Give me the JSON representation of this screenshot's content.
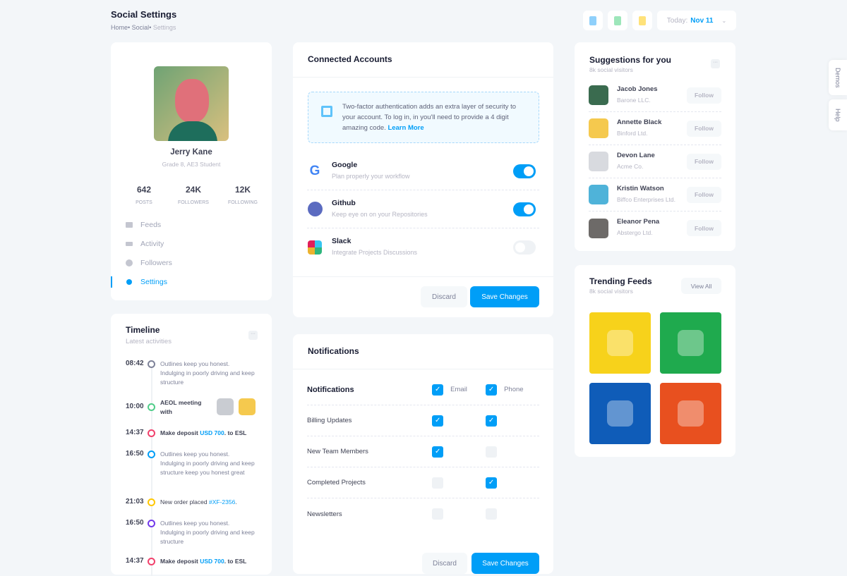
{
  "header": {
    "title": "Social Settings",
    "breadcrumb": [
      "Home",
      "Social",
      "Settings"
    ],
    "today_label": "Today:",
    "today_value": "Nov 11"
  },
  "profile": {
    "name": "Jerry Kane",
    "subtitle": "Grade 8, AE3 Student",
    "stats": [
      {
        "value": "642",
        "label": "POSTS"
      },
      {
        "value": "24K",
        "label": "FOLLOWERS"
      },
      {
        "value": "12K",
        "label": "FOLLOWING"
      }
    ],
    "nav": [
      {
        "label": "Feeds",
        "icon": "feeds-icon"
      },
      {
        "label": "Activity",
        "icon": "chart-icon"
      },
      {
        "label": "Followers",
        "icon": "user-icon"
      },
      {
        "label": "Settings",
        "icon": "gear-icon",
        "active": true
      }
    ]
  },
  "timeline": {
    "title": "Timeline",
    "subtitle": "Latest activities",
    "items": [
      {
        "time": "08:42",
        "text": "Outlines keep you honest. Indulging in poorly driving and keep structure",
        "color": "#7e8299"
      },
      {
        "time": "10:00",
        "text": "AEOL meeting with",
        "color": "#50cd89"
      },
      {
        "time": "14:37",
        "pre": "Make deposit ",
        "link": "USD 700",
        "post": ". to ESL",
        "color": "#f1416c"
      },
      {
        "time": "16:50",
        "text": "Outlines keep you honest. Indulging in poorly driving and keep structure keep you honest great",
        "color": "#009ef7"
      },
      {
        "time": "21:03",
        "pre": "New order placed ",
        "link": "#XF-2356",
        "post": ".",
        "color": "#ffc700"
      },
      {
        "time": "16:50",
        "text": "Outlines keep you honest. Indulging in poorly driving and keep structure",
        "color": "#7239ea"
      },
      {
        "time": "14:37",
        "pre": "Make deposit ",
        "link": "USD 700",
        "post": ". to ESL",
        "color": "#f1416c"
      }
    ]
  },
  "connected": {
    "title": "Connected Accounts",
    "notice": "Two-factor authentication adds an extra layer of security to your account. To log in, in you'll need to provide a 4 digit amazing code.",
    "learn_more": "Learn More",
    "accounts": [
      {
        "name": "Google",
        "desc": "Plan properly your workflow",
        "enabled": true
      },
      {
        "name": "Github",
        "desc": "Keep eye on on your Repositories",
        "enabled": true
      },
      {
        "name": "Slack",
        "desc": "Integrate Projects Discussions",
        "enabled": false
      }
    ],
    "discard": "Discard",
    "save": "Save Changes"
  },
  "notifications": {
    "title": "Notifications",
    "header_label": "Notifications",
    "email": "Email",
    "phone": "Phone",
    "rows": [
      {
        "label": "Billing Updates",
        "email": true,
        "phone": true
      },
      {
        "label": "New Team Members",
        "email": true,
        "phone": false
      },
      {
        "label": "Completed Projects",
        "email": false,
        "phone": true
      },
      {
        "label": "Newsletters",
        "email": false,
        "phone": false
      }
    ],
    "discard": "Discard",
    "save": "Save Changes"
  },
  "suggestions": {
    "title": "Suggestions for you",
    "subtitle": "8k social visitors",
    "follow": "Follow",
    "people": [
      {
        "name": "Jacob Jones",
        "company": "Barone LLC.",
        "color": "#3a6b4f"
      },
      {
        "name": "Annette Black",
        "company": "Binford Ltd.",
        "color": "#f5c94e"
      },
      {
        "name": "Devon Lane",
        "company": "Acme Co.",
        "color": "#d8dadf"
      },
      {
        "name": "Kristin Watson",
        "company": "Biffco Enterprises Ltd.",
        "color": "#4fb3d9"
      },
      {
        "name": "Eleanor Pena",
        "company": "Abstergo Ltd.",
        "color": "#6d6a68"
      }
    ]
  },
  "trending": {
    "title": "Trending Feeds",
    "subtitle": "8k social visitors",
    "view_all": "View All",
    "tiles": [
      "#f7d21b",
      "#1faa4e",
      "#0f5cb8",
      "#e8501f"
    ]
  },
  "side_tabs": [
    "Demos",
    "Help"
  ]
}
